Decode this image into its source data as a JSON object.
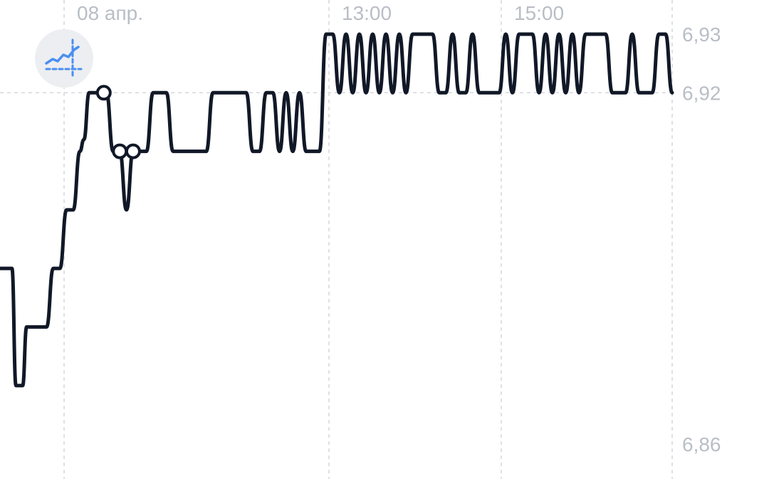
{
  "chart_data": {
    "type": "line",
    "title": "",
    "xlabel": "",
    "ylabel": "",
    "x_tick_labels": [
      "08 апр.",
      "13:00",
      "15:00"
    ],
    "y_tick_labels": [
      "6,93",
      "6,92",
      "6,86"
    ],
    "y_tick_values": [
      6.93,
      6.92,
      6.86
    ],
    "ylim": [
      6.858,
      6.933
    ],
    "grid": true,
    "series": [
      {
        "color": "#111827",
        "points": [
          [
            0,
            6.89
          ],
          [
            0.9,
            6.89
          ],
          [
            1.2,
            6.87
          ],
          [
            1.7,
            6.87
          ],
          [
            2.0,
            6.88
          ],
          [
            3.5,
            6.88
          ],
          [
            4.0,
            6.89
          ],
          [
            4.5,
            6.89
          ],
          [
            5.0,
            6.9
          ],
          [
            5.5,
            6.9
          ],
          [
            6.0,
            6.91
          ],
          [
            6.3,
            6.912
          ],
          [
            6.7,
            6.92
          ],
          [
            8.0,
            6.92
          ],
          [
            8.5,
            6.91
          ],
          [
            9.0,
            6.91
          ],
          [
            9.5,
            6.9
          ],
          [
            10.0,
            6.91
          ],
          [
            11.0,
            6.91
          ],
          [
            11.5,
            6.92
          ],
          [
            12.5,
            6.92
          ],
          [
            13.0,
            6.91
          ],
          [
            15.5,
            6.91
          ],
          [
            16.0,
            6.92
          ],
          [
            18.5,
            6.92
          ],
          [
            19.0,
            6.91
          ],
          [
            19.5,
            6.91
          ],
          [
            20.0,
            6.92
          ],
          [
            20.5,
            6.92
          ],
          [
            21.0,
            6.91
          ],
          [
            21.5,
            6.92
          ],
          [
            22.0,
            6.91
          ],
          [
            22.5,
            6.92
          ],
          [
            23.0,
            6.91
          ],
          [
            24.0,
            6.91
          ],
          [
            24.5,
            6.93
          ],
          [
            25.0,
            6.93
          ],
          [
            25.5,
            6.92
          ],
          [
            26.0,
            6.93
          ],
          [
            26.5,
            6.92
          ],
          [
            27.0,
            6.93
          ],
          [
            27.5,
            6.92
          ],
          [
            28.0,
            6.93
          ],
          [
            28.5,
            6.92
          ],
          [
            29.0,
            6.93
          ],
          [
            29.5,
            6.92
          ],
          [
            30.0,
            6.93
          ],
          [
            30.5,
            6.92
          ],
          [
            31.0,
            6.93
          ],
          [
            32.5,
            6.93
          ],
          [
            33.0,
            6.92
          ],
          [
            33.5,
            6.92
          ],
          [
            34.0,
            6.93
          ],
          [
            34.5,
            6.92
          ],
          [
            35.0,
            6.92
          ],
          [
            35.5,
            6.93
          ],
          [
            36.0,
            6.92
          ],
          [
            37.5,
            6.92
          ],
          [
            38.0,
            6.93
          ],
          [
            38.5,
            6.92
          ],
          [
            39.0,
            6.93
          ],
          [
            40.0,
            6.93
          ],
          [
            40.5,
            6.92
          ],
          [
            41.0,
            6.93
          ],
          [
            41.5,
            6.92
          ],
          [
            42.0,
            6.93
          ],
          [
            42.5,
            6.92
          ],
          [
            43.0,
            6.93
          ],
          [
            43.5,
            6.92
          ],
          [
            44.0,
            6.93
          ],
          [
            45.5,
            6.93
          ],
          [
            46.0,
            6.92
          ],
          [
            47.0,
            6.92
          ],
          [
            47.5,
            6.93
          ],
          [
            48.0,
            6.92
          ],
          [
            49.0,
            6.92
          ],
          [
            49.5,
            6.93
          ],
          [
            50.0,
            6.93
          ],
          [
            50.5,
            6.92
          ]
        ],
        "markers": [
          [
            7.8,
            6.92
          ],
          [
            9.0,
            6.91
          ],
          [
            10.0,
            6.91
          ]
        ]
      }
    ]
  },
  "toolbar": {
    "chart_type_icon": "trend-line-icon"
  }
}
